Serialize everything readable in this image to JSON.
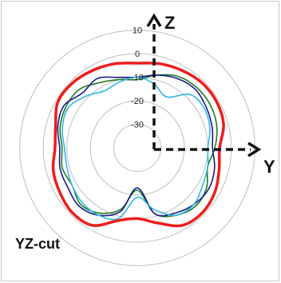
{
  "chart_data": {
    "type": "polar-line",
    "title": "YZ-cut",
    "radial_axis": {
      "ticks": [
        10,
        0,
        -10,
        -20,
        -30
      ],
      "range": [
        -40,
        15
      ],
      "rings": [
        10,
        0,
        -10,
        -20,
        -30
      ]
    },
    "angle_unit": "degrees clockwise from +Z",
    "axis_labels": {
      "up": "Z",
      "right": "Y"
    },
    "series": [
      {
        "color": "#ee1c1c",
        "angles": [
          0,
          15,
          30,
          45,
          60,
          75,
          90,
          105,
          120,
          135,
          150,
          165,
          180,
          195,
          210,
          225,
          240,
          255,
          270,
          285,
          300,
          315,
          330,
          345
        ],
        "values": [
          -4,
          -3,
          -2,
          -1,
          -1,
          -2,
          -5,
          -4,
          -2,
          -1,
          -2,
          -7,
          -10,
          -8,
          -2,
          -1,
          -2,
          -3,
          -5,
          -4,
          -1,
          -1,
          -2,
          -3
        ]
      },
      {
        "color": "#1f7a1f",
        "angles": [
          0,
          15,
          30,
          45,
          60,
          75,
          90,
          105,
          120,
          135,
          150,
          165,
          180,
          195,
          210,
          225,
          240,
          255,
          270,
          285,
          300,
          315,
          330,
          345
        ],
        "values": [
          -11,
          -8,
          -5,
          -4,
          -4,
          -5,
          -7,
          -9,
          -6,
          -5,
          -7,
          -11,
          -22,
          -13,
          -8,
          -6,
          -8,
          -7,
          -8,
          -6,
          -5,
          -5,
          -8,
          -10
        ]
      },
      {
        "color": "#1a1a8c",
        "angles": [
          0,
          15,
          30,
          45,
          60,
          75,
          90,
          105,
          120,
          135,
          150,
          165,
          180,
          195,
          210,
          225,
          240,
          255,
          270,
          285,
          300,
          315,
          330,
          345
        ],
        "values": [
          -10,
          -8,
          -6,
          -5,
          -6,
          -7,
          -8,
          -6,
          -5,
          -6,
          -8,
          -11,
          -23,
          -12,
          -7,
          -5,
          -6,
          -6,
          -7,
          -5,
          -4,
          -7,
          -6,
          -9
        ]
      },
      {
        "color": "#2eb8e6",
        "angles": [
          0,
          15,
          30,
          45,
          60,
          75,
          90,
          105,
          120,
          135,
          150,
          165,
          180,
          195,
          210,
          225,
          240,
          255,
          270,
          285,
          300,
          315,
          330,
          345
        ],
        "values": [
          -10,
          -12,
          -15,
          -8,
          -7,
          -8,
          -10,
          -9,
          -8,
          -6,
          -7,
          -13,
          -19,
          -9,
          -7,
          -7,
          -8,
          -9,
          -9,
          -7,
          -6,
          -9,
          -12,
          -11
        ]
      }
    ]
  }
}
